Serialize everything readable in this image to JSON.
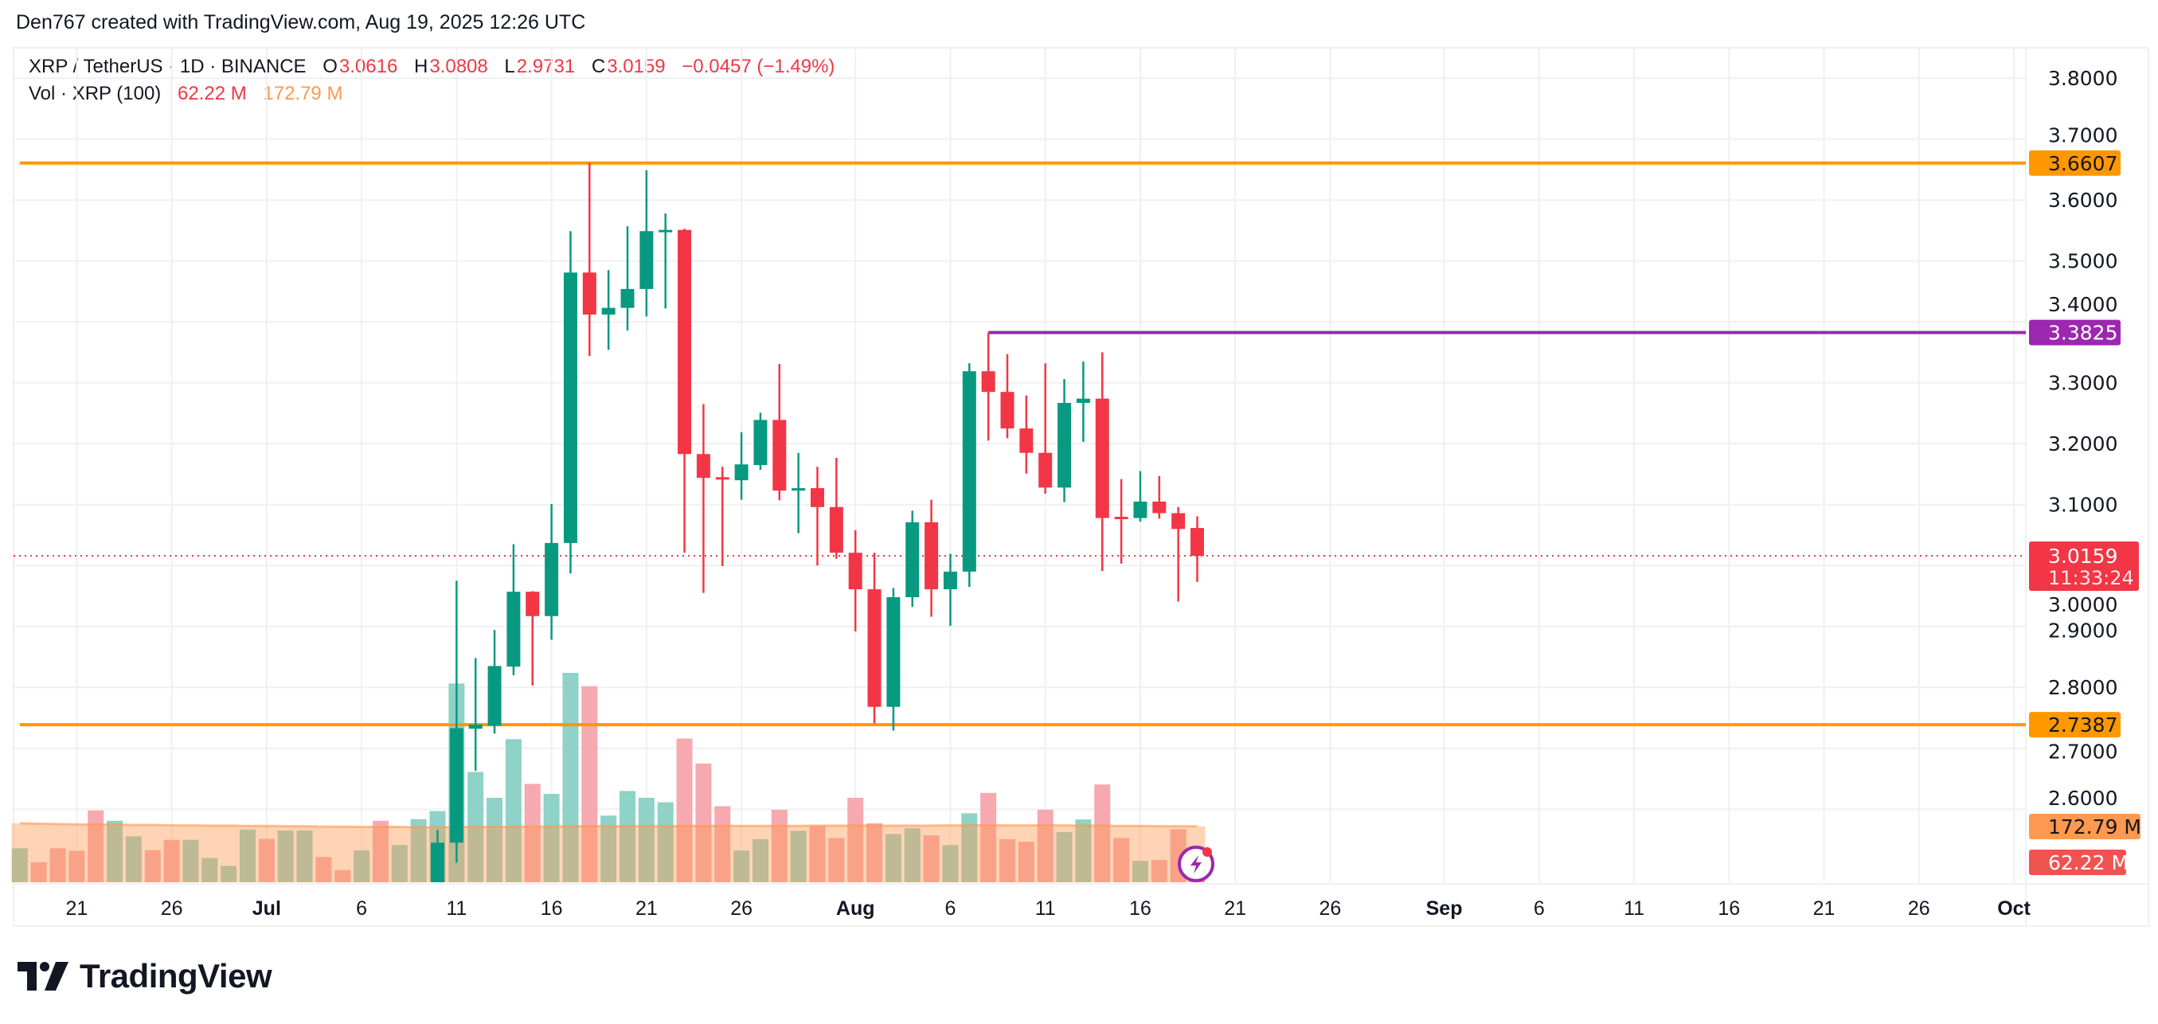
{
  "header": {
    "attribution": "Den767 created with TradingView.com, Aug 19, 2025 12:26 UTC"
  },
  "legend": {
    "symbol": "XRP / TetherUS · 1D · BINANCE",
    "o_label": "O",
    "o_value": "3.0616",
    "h_label": "H",
    "h_value": "3.0808",
    "l_label": "L",
    "l_value": "2.9731",
    "c_label": "C",
    "c_value": "3.0159",
    "change": "−0.0457 (−1.49%)",
    "vol_label": "Vol · XRP (100)",
    "vol_value": "62.22 M",
    "vol_ma_value": "172.79 M"
  },
  "price_axis": {
    "ticks": [
      "3.8000",
      "3.7000",
      "3.6000",
      "3.5000",
      "3.4000",
      "3.3000",
      "3.2000",
      "3.1000",
      "3.0000",
      "2.9000",
      "2.8000",
      "2.7000",
      "2.6000"
    ],
    "badges": [
      {
        "label": "3.6607",
        "price": 3.6607,
        "color": "#FF9800",
        "text_color": "#131722"
      },
      {
        "label": "3.3825",
        "price": 3.3825,
        "color": "#9C27B0",
        "text_color": "#ffffff"
      },
      {
        "label": "2.7387",
        "price": 2.7387,
        "color": "#FF9800",
        "text_color": "#131722"
      }
    ],
    "last_price": {
      "label": "3.0159",
      "countdown": "11:33:24",
      "color": "#F23645"
    },
    "vol_ma_badge": {
      "label": "172.79 M",
      "color": "#FF9850"
    },
    "vol_badge": {
      "label": "62.22 M",
      "color": "#EF5350"
    }
  },
  "time_axis": {
    "labels": [
      {
        "text": "21",
        "date": "2025-06-21",
        "bold": false
      },
      {
        "text": "26",
        "date": "2025-06-26",
        "bold": false
      },
      {
        "text": "Jul",
        "date": "2025-07-01",
        "bold": true
      },
      {
        "text": "6",
        "date": "2025-07-06",
        "bold": false
      },
      {
        "text": "11",
        "date": "2025-07-11",
        "bold": false
      },
      {
        "text": "16",
        "date": "2025-07-16",
        "bold": false
      },
      {
        "text": "21",
        "date": "2025-07-21",
        "bold": false
      },
      {
        "text": "26",
        "date": "2025-07-26",
        "bold": false
      },
      {
        "text": "Aug",
        "date": "2025-08-01",
        "bold": true
      },
      {
        "text": "6",
        "date": "2025-08-06",
        "bold": false
      },
      {
        "text": "11",
        "date": "2025-08-11",
        "bold": false
      },
      {
        "text": "16",
        "date": "2025-08-16",
        "bold": false
      },
      {
        "text": "21",
        "date": "2025-08-21",
        "bold": false
      },
      {
        "text": "26",
        "date": "2025-08-26",
        "bold": false
      },
      {
        "text": "Sep",
        "date": "2025-09-01",
        "bold": true
      },
      {
        "text": "6",
        "date": "2025-09-06",
        "bold": false
      },
      {
        "text": "11",
        "date": "2025-09-11",
        "bold": false
      },
      {
        "text": "16",
        "date": "2025-09-16",
        "bold": false
      },
      {
        "text": "21",
        "date": "2025-09-21",
        "bold": false
      },
      {
        "text": "26",
        "date": "2025-09-26",
        "bold": false
      },
      {
        "text": "Oct",
        "date": "2025-10-01",
        "bold": true
      }
    ]
  },
  "logo": {
    "text": "TradingView"
  },
  "colors": {
    "up": "#089981",
    "down": "#F23645",
    "vol_up": "#8FD2C7",
    "vol_down": "#F6A9AF",
    "vol_ma": "#FF9850",
    "grid": "#F0F0F3"
  },
  "chart_data": {
    "type": "candlestick",
    "title": "XRP / TetherUS · 1D · BINANCE",
    "ylim": [
      2.48,
      3.85
    ],
    "xlim": [
      "2025-06-18",
      "2025-10-03"
    ],
    "grid": true,
    "horizontal_lines": [
      {
        "price": 3.6607,
        "color": "#FF9800",
        "from": "2025-06-18"
      },
      {
        "price": 2.7387,
        "color": "#FF9800",
        "from": "2025-06-18"
      },
      {
        "price": 3.3825,
        "color": "#9C27B0",
        "from": "2025-08-08"
      }
    ],
    "last_price_line": {
      "price": 3.0159,
      "color": "#F23645",
      "style": "dotted"
    },
    "volume_only": [
      {
        "date": "2025-06-18",
        "v": 105,
        "dir": "up"
      },
      {
        "date": "2025-06-19",
        "v": 62,
        "dir": "down"
      },
      {
        "date": "2025-06-20",
        "v": 105,
        "dir": "down"
      },
      {
        "date": "2025-06-21",
        "v": 97,
        "dir": "down"
      },
      {
        "date": "2025-06-22",
        "v": 222,
        "dir": "down"
      },
      {
        "date": "2025-06-23",
        "v": 190,
        "dir": "up"
      },
      {
        "date": "2025-06-24",
        "v": 142,
        "dir": "up"
      },
      {
        "date": "2025-06-25",
        "v": 99,
        "dir": "down"
      },
      {
        "date": "2025-06-26",
        "v": 131,
        "dir": "down"
      },
      {
        "date": "2025-06-27",
        "v": 131,
        "dir": "up"
      },
      {
        "date": "2025-06-28",
        "v": 75,
        "dir": "up"
      },
      {
        "date": "2025-06-29",
        "v": 51,
        "dir": "up"
      },
      {
        "date": "2025-06-30",
        "v": 163,
        "dir": "up"
      },
      {
        "date": "2025-07-01",
        "v": 134,
        "dir": "down"
      },
      {
        "date": "2025-07-02",
        "v": 160,
        "dir": "up"
      },
      {
        "date": "2025-07-03",
        "v": 160,
        "dir": "up"
      },
      {
        "date": "2025-07-04",
        "v": 78,
        "dir": "down"
      },
      {
        "date": "2025-07-05",
        "v": 38,
        "dir": "down"
      },
      {
        "date": "2025-07-06",
        "v": 99,
        "dir": "up"
      },
      {
        "date": "2025-07-07",
        "v": 190,
        "dir": "down"
      },
      {
        "date": "2025-07-08",
        "v": 115,
        "dir": "up"
      },
      {
        "date": "2025-07-09",
        "v": 195,
        "dir": "up"
      }
    ],
    "candles": [
      {
        "date": "2025-07-10",
        "o": 2.42,
        "h": 2.566,
        "l": 2.4,
        "c": 2.545,
        "v": 220
      },
      {
        "date": "2025-07-11",
        "o": 2.545,
        "h": 2.975,
        "l": 2.512,
        "c": 2.733,
        "v": 614
      },
      {
        "date": "2025-07-12",
        "o": 2.732,
        "h": 2.848,
        "l": 2.663,
        "c": 2.739,
        "v": 341
      },
      {
        "date": "2025-07-13",
        "o": 2.737,
        "h": 2.894,
        "l": 2.724,
        "c": 2.835,
        "v": 261
      },
      {
        "date": "2025-07-14",
        "o": 2.834,
        "h": 3.035,
        "l": 2.82,
        "c": 2.957,
        "v": 442
      },
      {
        "date": "2025-07-15",
        "o": 2.957,
        "h": 2.958,
        "l": 2.803,
        "c": 2.917,
        "v": 304
      },
      {
        "date": "2025-07-16",
        "o": 2.917,
        "h": 3.101,
        "l": 2.878,
        "c": 3.037,
        "v": 273
      },
      {
        "date": "2025-07-17",
        "o": 3.037,
        "h": 3.549,
        "l": 2.987,
        "c": 3.481,
        "v": 647
      },
      {
        "date": "2025-07-18",
        "o": 3.481,
        "h": 3.6607,
        "l": 3.344,
        "c": 3.412,
        "v": 606
      },
      {
        "date": "2025-07-19",
        "o": 3.412,
        "h": 3.485,
        "l": 3.354,
        "c": 3.423,
        "v": 206
      },
      {
        "date": "2025-07-20",
        "o": 3.423,
        "h": 3.557,
        "l": 3.386,
        "c": 3.454,
        "v": 282
      },
      {
        "date": "2025-07-21",
        "o": 3.454,
        "h": 3.649,
        "l": 3.409,
        "c": 3.549,
        "v": 261
      },
      {
        "date": "2025-07-22",
        "o": 3.549,
        "h": 3.578,
        "l": 3.422,
        "c": 3.551,
        "v": 247
      },
      {
        "date": "2025-07-23",
        "o": 3.551,
        "h": 3.553,
        "l": 3.021,
        "c": 3.183,
        "v": 444
      },
      {
        "date": "2025-07-24",
        "o": 3.183,
        "h": 3.265,
        "l": 2.955,
        "c": 3.144,
        "v": 367
      },
      {
        "date": "2025-07-25",
        "o": 3.145,
        "h": 3.162,
        "l": 2.999,
        "c": 3.142,
        "v": 235
      },
      {
        "date": "2025-07-26",
        "o": 3.14,
        "h": 3.219,
        "l": 3.108,
        "c": 3.166,
        "v": 98
      },
      {
        "date": "2025-07-27",
        "o": 3.165,
        "h": 3.251,
        "l": 3.157,
        "c": 3.239,
        "v": 133
      },
      {
        "date": "2025-07-28",
        "o": 3.239,
        "h": 3.331,
        "l": 3.107,
        "c": 3.123,
        "v": 224
      },
      {
        "date": "2025-07-29",
        "o": 3.123,
        "h": 3.185,
        "l": 3.053,
        "c": 3.127,
        "v": 159
      },
      {
        "date": "2025-07-30",
        "o": 3.127,
        "h": 3.162,
        "l": 3.0,
        "c": 3.096,
        "v": 174
      },
      {
        "date": "2025-07-31",
        "o": 3.096,
        "h": 3.177,
        "l": 3.011,
        "c": 3.021,
        "v": 137
      },
      {
        "date": "2025-08-01",
        "o": 3.021,
        "h": 3.058,
        "l": 2.892,
        "c": 2.961,
        "v": 261
      },
      {
        "date": "2025-08-02",
        "o": 2.961,
        "h": 3.021,
        "l": 2.741,
        "c": 2.768,
        "v": 182
      },
      {
        "date": "2025-08-03",
        "o": 2.768,
        "h": 2.963,
        "l": 2.729,
        "c": 2.948,
        "v": 149
      },
      {
        "date": "2025-08-04",
        "o": 2.948,
        "h": 3.09,
        "l": 2.932,
        "c": 3.071,
        "v": 167
      },
      {
        "date": "2025-08-05",
        "o": 3.071,
        "h": 3.108,
        "l": 2.916,
        "c": 2.961,
        "v": 145
      },
      {
        "date": "2025-08-06",
        "o": 2.961,
        "h": 3.019,
        "l": 2.901,
        "c": 2.99,
        "v": 115
      },
      {
        "date": "2025-08-07",
        "o": 2.99,
        "h": 3.332,
        "l": 2.965,
        "c": 3.319,
        "v": 213
      },
      {
        "date": "2025-08-08",
        "o": 3.319,
        "h": 3.3825,
        "l": 3.205,
        "c": 3.285,
        "v": 276
      },
      {
        "date": "2025-08-09",
        "o": 3.285,
        "h": 3.347,
        "l": 3.209,
        "c": 3.225,
        "v": 133
      },
      {
        "date": "2025-08-10",
        "o": 3.225,
        "h": 3.279,
        "l": 3.151,
        "c": 3.185,
        "v": 125
      },
      {
        "date": "2025-08-11",
        "o": 3.185,
        "h": 3.332,
        "l": 3.118,
        "c": 3.128,
        "v": 224
      },
      {
        "date": "2025-08-12",
        "o": 3.128,
        "h": 3.306,
        "l": 3.104,
        "c": 3.267,
        "v": 155
      },
      {
        "date": "2025-08-13",
        "o": 3.267,
        "h": 3.335,
        "l": 3.203,
        "c": 3.274,
        "v": 194
      },
      {
        "date": "2025-08-14",
        "o": 3.274,
        "h": 3.35,
        "l": 2.991,
        "c": 3.078,
        "v": 302
      },
      {
        "date": "2025-08-15",
        "o": 3.08,
        "h": 3.142,
        "l": 3.003,
        "c": 3.078,
        "v": 137
      },
      {
        "date": "2025-08-16",
        "o": 3.078,
        "h": 3.155,
        "l": 3.072,
        "c": 3.105,
        "v": 66
      },
      {
        "date": "2025-08-17",
        "o": 3.105,
        "h": 3.147,
        "l": 3.077,
        "c": 3.086,
        "v": 69
      },
      {
        "date": "2025-08-18",
        "o": 3.086,
        "h": 3.096,
        "l": 2.941,
        "c": 3.06,
        "v": 164
      },
      {
        "date": "2025-08-19",
        "o": 3.0616,
        "h": 3.0808,
        "l": 2.9731,
        "c": 3.0159,
        "v": 62.22
      }
    ],
    "volume_unit": "M",
    "volume_ma_length": 100,
    "volume_ma": [
      182,
      181,
      180,
      179,
      178,
      178,
      177,
      177,
      176,
      176,
      175,
      175,
      174,
      174,
      173,
      173,
      172,
      172,
      171,
      171,
      171,
      170,
      170,
      171,
      171,
      171,
      172,
      172,
      172,
      173,
      173,
      173,
      173,
      173,
      173,
      174,
      174,
      174,
      174,
      174,
      174,
      174,
      175,
      175,
      175,
      175,
      175,
      175,
      175,
      176,
      176,
      176,
      176,
      176,
      176,
      176,
      175,
      175,
      174,
      174,
      173,
      173,
      172.79
    ]
  }
}
